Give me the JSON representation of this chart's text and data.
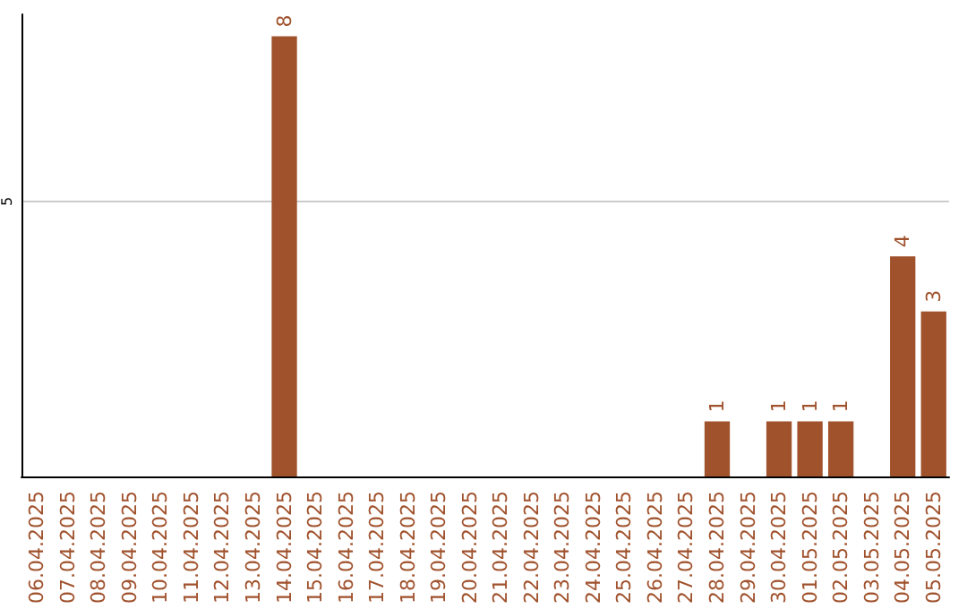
{
  "chart_data": {
    "type": "bar",
    "categories": [
      "06.04.2025",
      "07.04.2025",
      "08.04.2025",
      "09.04.2025",
      "10.04.2025",
      "11.04.2025",
      "12.04.2025",
      "13.04.2025",
      "14.04.2025",
      "15.04.2025",
      "16.04.2025",
      "17.04.2025",
      "18.04.2025",
      "19.04.2025",
      "20.04.2025",
      "21.04.2025",
      "22.04.2025",
      "23.04.2025",
      "24.04.2025",
      "25.04.2025",
      "26.04.2025",
      "27.04.2025",
      "28.04.2025",
      "29.04.2025",
      "30.04.2025",
      "01.05.2025",
      "02.05.2025",
      "03.05.2025",
      "04.05.2025",
      "05.05.2025"
    ],
    "values": [
      0,
      0,
      0,
      0,
      0,
      0,
      0,
      0,
      8,
      0,
      0,
      0,
      0,
      0,
      0,
      0,
      0,
      0,
      0,
      0,
      0,
      0,
      1,
      0,
      1,
      1,
      1,
      0,
      4,
      3
    ],
    "value_labels": [
      null,
      null,
      null,
      null,
      null,
      null,
      null,
      null,
      "8",
      null,
      null,
      null,
      null,
      null,
      null,
      null,
      null,
      null,
      null,
      null,
      null,
      null,
      "1",
      null,
      "1",
      "1",
      "1",
      null,
      "4",
      "3"
    ],
    "color": "#a0522d",
    "ylim": [
      0,
      8.4
    ],
    "yticks": [
      5
    ],
    "grid": "y"
  }
}
